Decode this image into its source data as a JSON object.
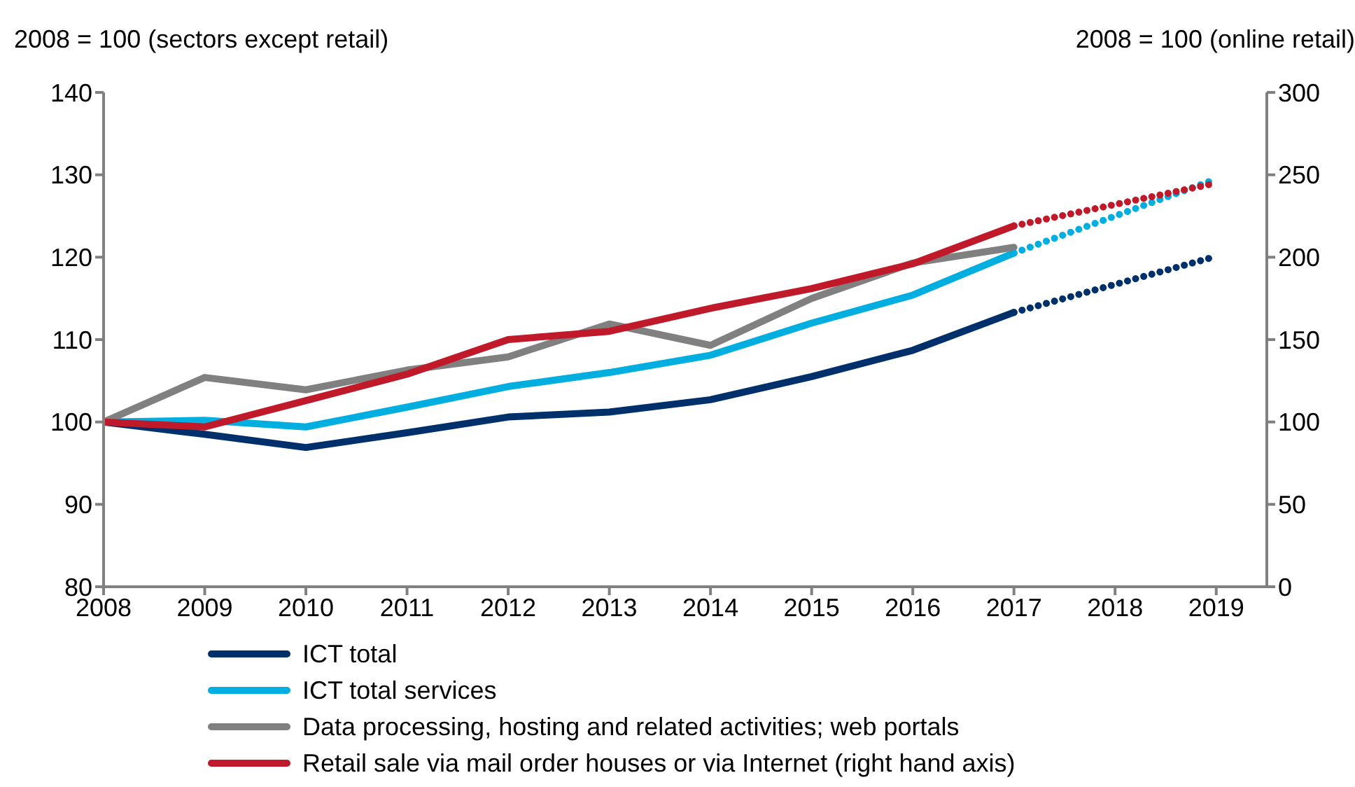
{
  "chart_data": {
    "type": "line",
    "ylabel": "2008 = 100 (sectors except retail)",
    "y2label": "2008 = 100 (online retail)",
    "x": [
      2008,
      2009,
      2010,
      2011,
      2012,
      2013,
      2014,
      2015,
      2016,
      2017,
      2018,
      2019
    ],
    "xlim": [
      2008,
      2019.5
    ],
    "xticks": [
      2008,
      2009,
      2010,
      2011,
      2012,
      2013,
      2014,
      2015,
      2016,
      2017,
      2018,
      2019
    ],
    "ylim": [
      80,
      140
    ],
    "yticks": [
      80,
      90,
      100,
      110,
      120,
      130,
      140
    ],
    "y2lim": [
      0,
      300
    ],
    "y2ticks": [
      0,
      50,
      100,
      150,
      200,
      250,
      300
    ],
    "grid": false,
    "legend": "bottom",
    "marker": "none",
    "line_style": "solid",
    "series": [
      {
        "name": "ICT total",
        "color": "#00306b",
        "values": [
          100,
          98.5,
          96.9,
          98.7,
          100.6,
          101.2,
          102.7,
          105.5,
          108.7,
          113.3,
          null,
          null
        ]
      },
      {
        "name": "ICT total services",
        "color": "#00aee0",
        "values": [
          100,
          100.2,
          99.4,
          101.8,
          104.3,
          106,
          108.1,
          112,
          115.4,
          120.5,
          null,
          null
        ]
      },
      {
        "name": "Data processing, hosting and related activities; web portals",
        "color": "#808080",
        "values": [
          100,
          105.4,
          103.9,
          106.3,
          107.9,
          111.9,
          109.3,
          115,
          119.3,
          121.2,
          null,
          null
        ]
      },
      {
        "name": "Retail sale via mail order houses or via Internet (right hand axis)",
        "color": "#c0192a",
        "axis": "y2",
        "values": [
          100,
          97,
          113,
          129,
          150,
          155,
          169,
          181,
          196,
          219,
          null,
          null
        ]
      },
      {
        "color": "#00306b",
        "line_style": "dotted",
        "values": [
          null,
          null,
          null,
          null,
          null,
          null,
          null,
          null,
          null,
          113.3,
          116.7,
          120.1
        ]
      },
      {
        "color": "#00aee0",
        "line_style": "dotted",
        "values": [
          null,
          null,
          null,
          null,
          null,
          null,
          null,
          null,
          null,
          120.5,
          125,
          129.5
        ]
      },
      {
        "color": "#c0192a",
        "line_style": "dotted",
        "axis": "y2",
        "values": [
          null,
          null,
          null,
          null,
          null,
          null,
          null,
          null,
          null,
          219,
          232,
          245
        ]
      }
    ]
  }
}
